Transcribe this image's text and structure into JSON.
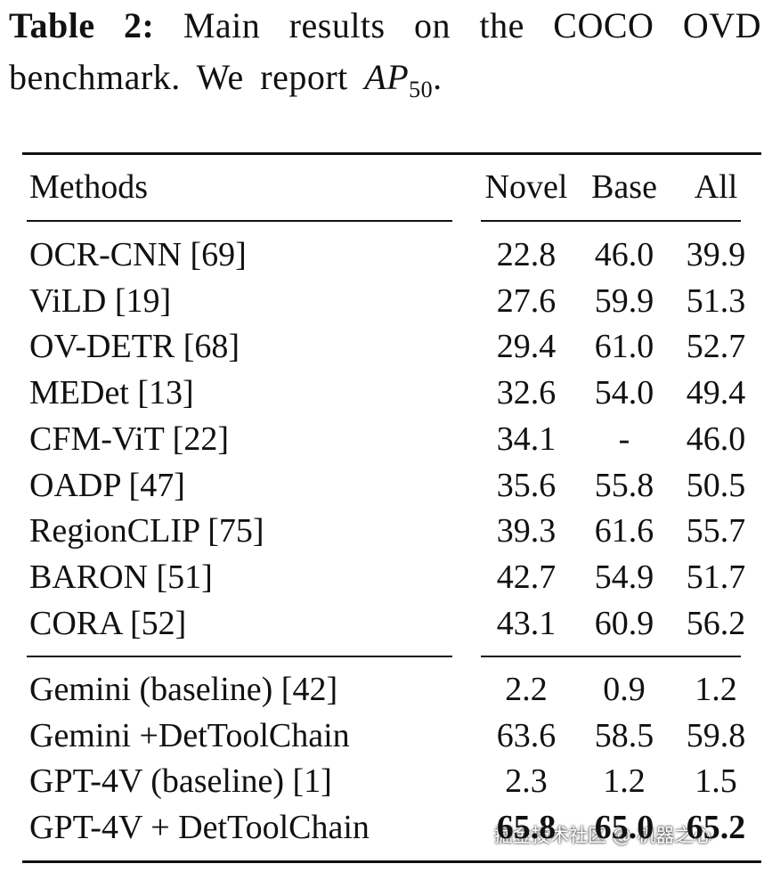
{
  "caption": {
    "label": "Table 2:",
    "text": "Main results on the COCO OVD benchmark. We report",
    "math": "AP",
    "math_sub": "50",
    "end": "."
  },
  "table": {
    "header": [
      "Methods",
      "Novel",
      "Base",
      "All"
    ],
    "groups": [
      [
        [
          "OCR-CNN [69]",
          "22.8",
          "46.0",
          "39.9"
        ],
        [
          "ViLD [19]",
          "27.6",
          "59.9",
          "51.3"
        ],
        [
          "OV-DETR [68]",
          "29.4",
          "61.0",
          "52.7"
        ],
        [
          "MEDet [13]",
          "32.6",
          "54.0",
          "49.4"
        ],
        [
          "CFM-ViT [22]",
          "34.1",
          "-",
          "46.0"
        ],
        [
          "OADP [47]",
          "35.6",
          "55.8",
          "50.5"
        ],
        [
          "RegionCLIP [75]",
          "39.3",
          "61.6",
          "55.7"
        ],
        [
          "BARON [51]",
          "42.7",
          "54.9",
          "51.7"
        ],
        [
          "CORA [52]",
          "43.1",
          "60.9",
          "56.2"
        ]
      ],
      [
        [
          "Gemini (baseline) [42]",
          "2.2",
          "0.9",
          "1.2"
        ],
        [
          "Gemini +DetToolChain",
          "63.6",
          "58.5",
          "59.8"
        ],
        [
          "GPT-4V (baseline) [1]",
          "2.3",
          "1.2",
          "1.5"
        ],
        [
          "GPT-4V + DetToolChain",
          "65.8",
          "65.0",
          "65.2"
        ]
      ]
    ]
  },
  "watermark": "掘金技术社区 @ 机器之心"
}
